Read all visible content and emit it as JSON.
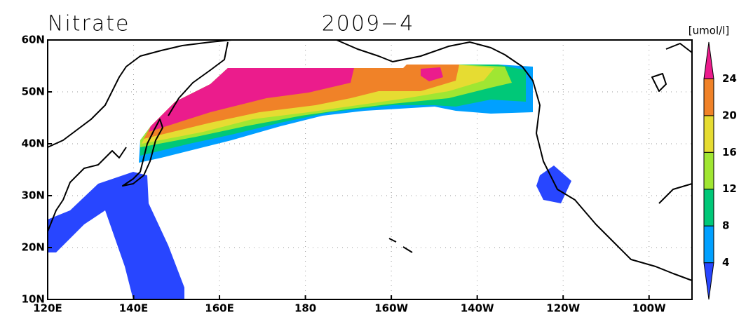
{
  "map_data": {
    "title": "Nitrate",
    "date": "2009−4",
    "units": "[umol/l]",
    "xlim": [
      120,
      270
    ],
    "ylim": [
      10,
      60
    ],
    "lon_ticks": [
      {
        "value": 120,
        "label": "120E"
      },
      {
        "value": 140,
        "label": "140E"
      },
      {
        "value": 160,
        "label": "160E"
      },
      {
        "value": 180,
        "label": "180"
      },
      {
        "value": 200,
        "label": "160W"
      },
      {
        "value": 220,
        "label": "140W"
      },
      {
        "value": 240,
        "label": "120W"
      },
      {
        "value": 260,
        "label": "100W"
      }
    ],
    "lat_ticks": [
      {
        "value": 10,
        "label": "10N"
      },
      {
        "value": 20,
        "label": "20N"
      },
      {
        "value": 30,
        "label": "30N"
      },
      {
        "value": 40,
        "label": "40N"
      },
      {
        "value": 50,
        "label": "50N"
      },
      {
        "value": 60,
        "label": "60N"
      }
    ],
    "grid": true,
    "colorbar": {
      "levels": [
        4,
        8,
        12,
        16,
        20,
        24
      ],
      "colors": [
        "#2846ff",
        "#00a0ff",
        "#00c878",
        "#a0e632",
        "#e6dc32",
        "#f08228",
        "#eb1c8c"
      ]
    }
  }
}
